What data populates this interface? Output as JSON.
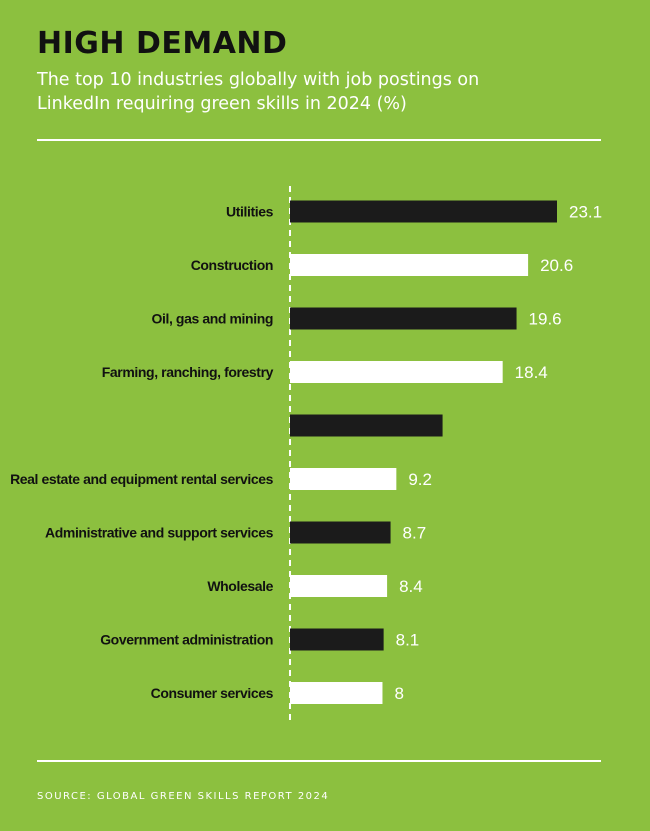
{
  "colors": {
    "background": "#8cc03f",
    "title": "#111111",
    "text_light": "#ffffff",
    "bar_dark": "#1b1b1b",
    "bar_light": "#ffffff"
  },
  "header": {
    "title": "HIGH DEMAND",
    "subtitle": "The top 10 industries globally with job postings on LinkedIn requiring green skills in 2024 (%)"
  },
  "footer": {
    "source": "SOURCE: GLOBAL GREEN SKILLS REPORT 2024"
  },
  "chart_data": {
    "type": "bar",
    "orientation": "horizontal",
    "categories": [
      "Utilities",
      "Construction",
      "Oil, gas and mining",
      "Farming, ranching, forestry",
      "",
      "Real estate and equipment rental services",
      "Administrative and support services",
      "Wholesale",
      "Government administration",
      "Consumer services"
    ],
    "values": [
      23.1,
      20.6,
      19.6,
      18.4,
      13.2,
      9.2,
      8.7,
      8.4,
      8.1,
      8
    ],
    "value_labels": [
      "23.1",
      "20.6",
      "19.6",
      "18.4",
      "",
      "9.2",
      "8.7",
      "8.4",
      "8.1",
      "8"
    ],
    "bar_colors": [
      "dark",
      "light",
      "dark",
      "light",
      "dark",
      "light",
      "dark",
      "light",
      "dark",
      "light"
    ],
    "xlim": [
      0,
      23.1
    ],
    "axis_style": "dashed-baseline",
    "grid": false
  }
}
